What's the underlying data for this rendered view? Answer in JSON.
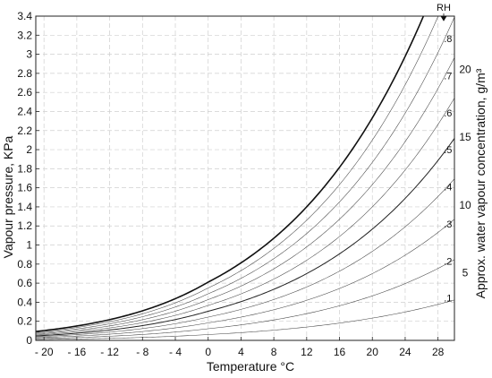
{
  "chart_data": {
    "type": "line",
    "xlabel": "Temperature °C",
    "ylabel": "Vapour pressure, KPa",
    "y2label": "Approx. water vapour concentration, g/m³",
    "xlim": [
      -21,
      30
    ],
    "ylim": [
      0,
      3.4
    ],
    "x_ticks": [
      -20,
      -16,
      -12,
      -8,
      -4,
      0,
      4,
      8,
      12,
      16,
      20,
      24,
      28
    ],
    "x_tick_labels": [
      "- 20",
      "- 16",
      "- 12",
      "- 8",
      "- 4",
      "0",
      "4",
      "8",
      "12",
      "16",
      "20",
      "24",
      "28"
    ],
    "y_ticks": [
      0,
      0.2,
      0.4,
      0.6,
      0.8,
      1,
      1.2,
      1.4,
      1.6,
      1.8,
      2,
      2.2,
      2.4,
      2.6,
      2.8,
      3,
      3.2,
      3.4
    ],
    "y_tick_labels": [
      "0",
      "0.2",
      "0.4",
      "0.6",
      "0.8",
      "1",
      "1.2",
      "1.4",
      "1.6",
      "1.8",
      "2",
      "2.2",
      "2.4",
      "2.6",
      "2.8",
      "3",
      "3.2",
      "3.4"
    ],
    "y2_ticks": [
      5,
      10,
      15,
      20
    ],
    "y2_tick_labels": [
      "5",
      "10",
      "15",
      "20"
    ],
    "grid": true,
    "rh_marker_label": "RH",
    "x": [
      -21,
      -20,
      -18,
      -16,
      -14,
      -12,
      -10,
      -8,
      -6,
      -4,
      -2,
      0,
      2,
      4,
      6,
      8,
      10,
      12,
      14,
      16,
      18,
      20,
      22,
      24,
      26,
      28,
      30
    ],
    "series": [
      {
        "rh": 1.0,
        "values": [
          0.115,
          0.125,
          0.151,
          0.182,
          0.219,
          0.262,
          0.308,
          0.36,
          0.418,
          0.483,
          0.555,
          0.635,
          0.723,
          0.821,
          0.929,
          1.047,
          1.176,
          1.317,
          1.471,
          1.638,
          1.82,
          2.017,
          2.232,
          2.464,
          2.716,
          2.989,
          3.283
        ]
      },
      {
        "rh": 0.9,
        "values": [
          0.104,
          0.113,
          0.136,
          0.164,
          0.197,
          0.236,
          0.277,
          0.324,
          0.376,
          0.435,
          0.5,
          0.572,
          0.651,
          0.739,
          0.836,
          0.942,
          1.058,
          1.185,
          1.324,
          1.474,
          1.638,
          1.815,
          2.009,
          2.218,
          2.444,
          2.69,
          2.955
        ]
      },
      {
        "rh": 0.8,
        "label": ".8",
        "values": [
          0.092,
          0.1,
          0.121,
          0.146,
          0.175,
          0.21,
          0.246,
          0.288,
          0.334,
          0.386,
          0.444,
          0.508,
          0.578,
          0.657,
          0.743,
          0.838,
          0.941,
          1.054,
          1.177,
          1.31,
          1.456,
          1.614,
          1.786,
          1.971,
          2.173,
          2.391,
          2.626
        ]
      },
      {
        "rh": 0.7,
        "label": ".7",
        "values": [
          0.081,
          0.088,
          0.106,
          0.127,
          0.153,
          0.183,
          0.216,
          0.252,
          0.293,
          0.338,
          0.389,
          0.445,
          0.506,
          0.575,
          0.65,
          0.733,
          0.823,
          0.922,
          1.03,
          1.147,
          1.274,
          1.412,
          1.562,
          1.725,
          1.901,
          2.092,
          2.298
        ]
      },
      {
        "rh": 0.6,
        "label": ".6",
        "values": [
          0.069,
          0.075,
          0.091,
          0.109,
          0.131,
          0.157,
          0.185,
          0.216,
          0.251,
          0.29,
          0.333,
          0.381,
          0.434,
          0.493,
          0.557,
          0.628,
          0.706,
          0.79,
          0.883,
          0.983,
          1.092,
          1.21,
          1.339,
          1.478,
          1.63,
          1.793,
          1.97
        ]
      },
      {
        "rh": 0.5,
        "label": ".5",
        "values": [
          0.058,
          0.063,
          0.076,
          0.091,
          0.11,
          0.131,
          0.154,
          0.18,
          0.209,
          0.242,
          0.278,
          0.318,
          0.362,
          0.411,
          0.465,
          0.524,
          0.588,
          0.659,
          0.736,
          0.819,
          0.91,
          1.009,
          1.116,
          1.232,
          1.358,
          1.495,
          1.642
        ]
      },
      {
        "rh": 0.4,
        "label": ".4",
        "values": [
          0.046,
          0.05,
          0.06,
          0.073,
          0.088,
          0.105,
          0.123,
          0.144,
          0.167,
          0.193,
          0.222,
          0.254,
          0.289,
          0.328,
          0.372,
          0.419,
          0.47,
          0.527,
          0.588,
          0.655,
          0.728,
          0.807,
          0.893,
          0.986,
          1.086,
          1.196,
          1.313
        ]
      },
      {
        "rh": 0.3,
        "label": ".3",
        "values": [
          0.035,
          0.038,
          0.045,
          0.055,
          0.066,
          0.079,
          0.092,
          0.108,
          0.125,
          0.145,
          0.167,
          0.191,
          0.217,
          0.246,
          0.279,
          0.314,
          0.353,
          0.395,
          0.441,
          0.491,
          0.546,
          0.605,
          0.67,
          0.739,
          0.815,
          0.897,
          0.985
        ]
      },
      {
        "rh": 0.2,
        "label": ".2",
        "values": [
          0.023,
          0.025,
          0.03,
          0.036,
          0.044,
          0.052,
          0.062,
          0.072,
          0.084,
          0.097,
          0.111,
          0.127,
          0.145,
          0.164,
          0.186,
          0.209,
          0.235,
          0.263,
          0.294,
          0.328,
          0.364,
          0.403,
          0.446,
          0.493,
          0.543,
          0.598,
          0.657
        ]
      },
      {
        "rh": 0.1,
        "label": ".1",
        "values": [
          0.012,
          0.013,
          0.015,
          0.018,
          0.022,
          0.026,
          0.031,
          0.036,
          0.042,
          0.048,
          0.056,
          0.064,
          0.072,
          0.082,
          0.093,
          0.105,
          0.118,
          0.132,
          0.147,
          0.164,
          0.182,
          0.202,
          0.223,
          0.246,
          0.272,
          0.299,
          0.328
        ]
      }
    ]
  }
}
